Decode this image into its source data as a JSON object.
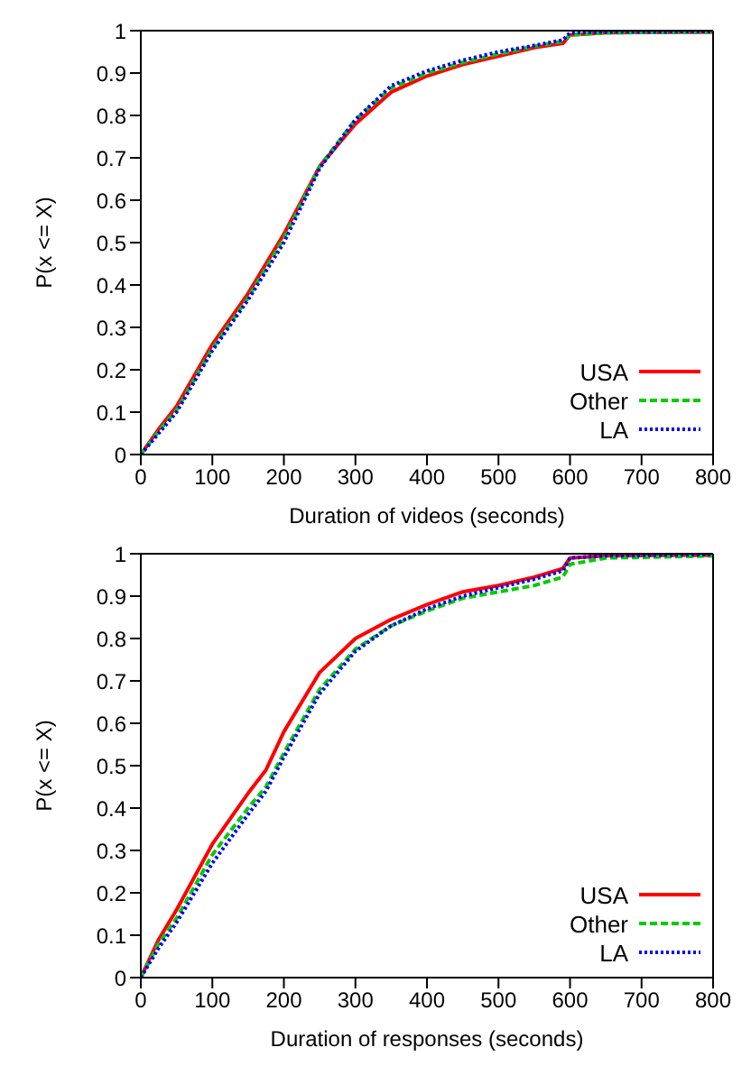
{
  "chart_data": [
    {
      "type": "line",
      "xlabel": "Duration of videos (seconds)",
      "ylabel": "P(x <= X)",
      "xlim": [
        0,
        800
      ],
      "xticks": [
        0,
        100,
        200,
        300,
        400,
        500,
        600,
        700,
        800
      ],
      "ylim": [
        0,
        1
      ],
      "yticks": [
        0,
        0.1,
        0.2,
        0.3,
        0.4,
        0.5,
        0.6,
        0.7,
        0.8,
        0.9,
        1
      ],
      "legend": "bottom right",
      "marker": "none",
      "x": [
        0,
        25,
        50,
        100,
        150,
        200,
        250,
        300,
        350,
        400,
        450,
        500,
        550,
        590,
        600,
        650,
        800
      ],
      "series": [
        {
          "name": "USA",
          "color": "#ff0000",
          "line_style": "solid",
          "values": [
            0,
            0.06,
            0.114,
            0.26,
            0.38,
            0.52,
            0.68,
            0.78,
            0.855,
            0.893,
            0.92,
            0.94,
            0.96,
            0.97,
            0.99,
            0.995,
            0.997
          ]
        },
        {
          "name": "Other",
          "color": "#00cc00",
          "line_style": "dashed",
          "values": [
            0,
            0.055,
            0.105,
            0.25,
            0.37,
            0.51,
            0.68,
            0.79,
            0.865,
            0.9,
            0.925,
            0.945,
            0.963,
            0.975,
            0.99,
            0.995,
            0.997
          ]
        },
        {
          "name": "LA",
          "color": "#0000ff",
          "line_style": "dotted",
          "values": [
            0,
            0.05,
            0.1,
            0.245,
            0.365,
            0.5,
            0.675,
            0.79,
            0.87,
            0.905,
            0.93,
            0.95,
            0.965,
            0.978,
            0.995,
            0.997,
            0.998
          ]
        }
      ]
    },
    {
      "type": "line",
      "xlabel": "Duration of responses (seconds)",
      "ylabel": "P(x <= X)",
      "xlim": [
        0,
        800
      ],
      "xticks": [
        0,
        100,
        200,
        300,
        400,
        500,
        600,
        700,
        800
      ],
      "ylim": [
        0,
        1
      ],
      "yticks": [
        0,
        0.1,
        0.2,
        0.3,
        0.4,
        0.5,
        0.6,
        0.7,
        0.8,
        0.9,
        1
      ],
      "legend": "bottom right",
      "marker": "none",
      "x": [
        0,
        25,
        50,
        100,
        150,
        175,
        200,
        250,
        300,
        350,
        400,
        450,
        500,
        550,
        590,
        600,
        650,
        800
      ],
      "series": [
        {
          "name": "USA",
          "color": "#ff0000",
          "line_style": "solid",
          "values": [
            0,
            0.09,
            0.16,
            0.315,
            0.435,
            0.49,
            0.58,
            0.72,
            0.8,
            0.845,
            0.88,
            0.91,
            0.925,
            0.945,
            0.965,
            0.99,
            0.995,
            0.997
          ]
        },
        {
          "name": "Other",
          "color": "#00cc00",
          "line_style": "dashed",
          "values": [
            0,
            0.08,
            0.14,
            0.29,
            0.4,
            0.45,
            0.53,
            0.68,
            0.775,
            0.83,
            0.865,
            0.895,
            0.91,
            0.925,
            0.945,
            0.975,
            0.99,
            0.995
          ]
        },
        {
          "name": "LA",
          "color": "#0000ff",
          "line_style": "dotted",
          "values": [
            0,
            0.07,
            0.13,
            0.27,
            0.385,
            0.44,
            0.52,
            0.67,
            0.77,
            0.83,
            0.87,
            0.9,
            0.92,
            0.94,
            0.96,
            0.99,
            0.995,
            0.998
          ]
        }
      ]
    }
  ]
}
